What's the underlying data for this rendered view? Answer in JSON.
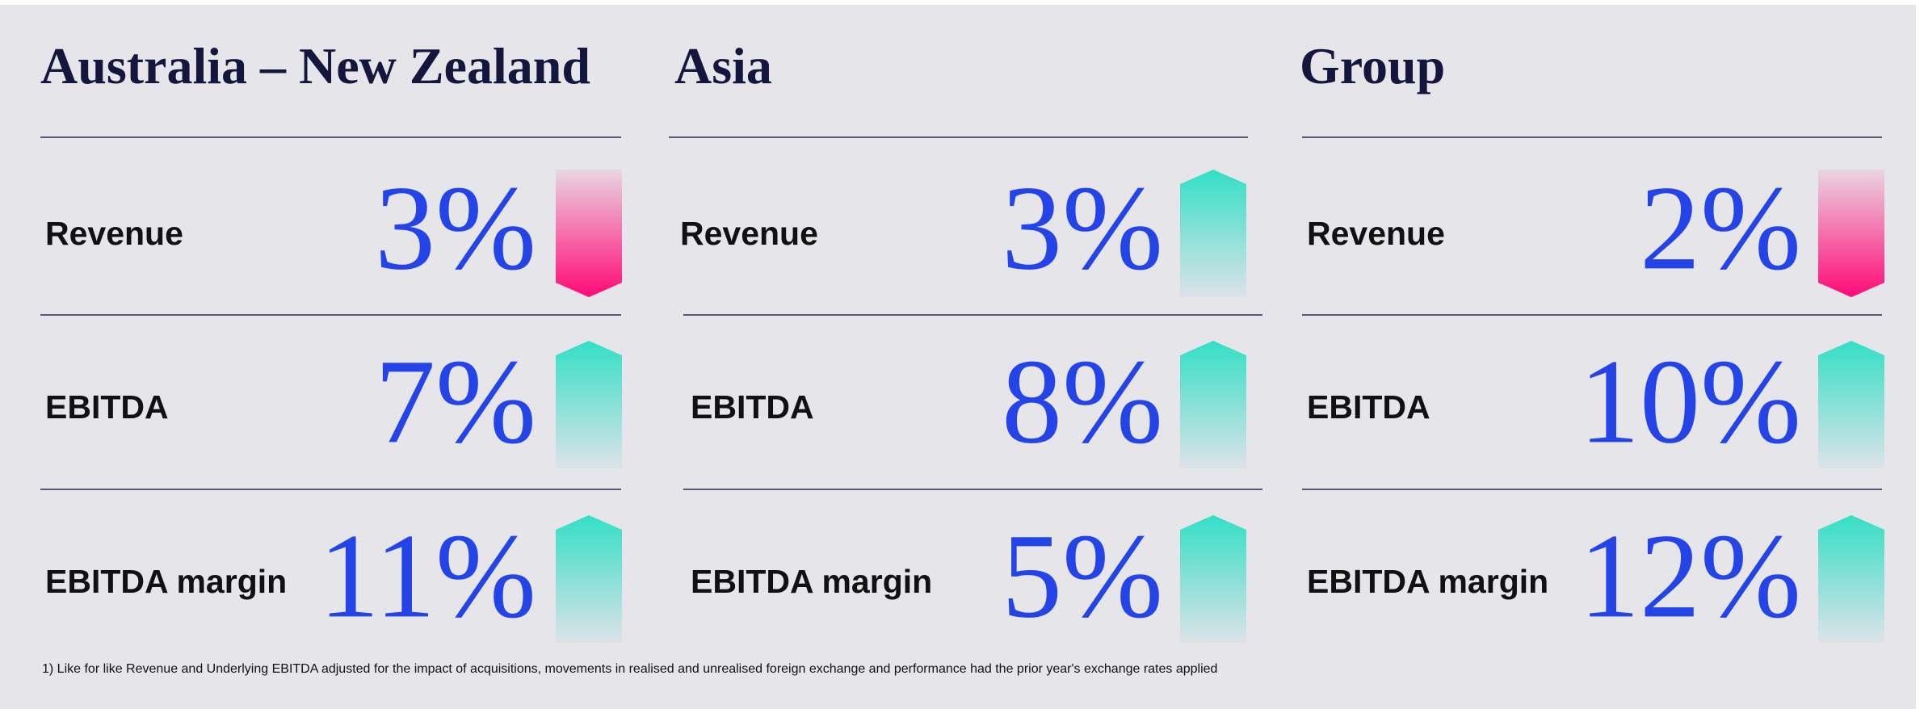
{
  "footnote": "1) Like for like Revenue and Underlying EBITDA adjusted for the impact of acquisitions, movements in realised and unrealised foreign exchange and performance had the prior year's exchange rates applied",
  "sections": [
    {
      "title": "Australia – New Zealand",
      "rows": [
        {
          "label": "Revenue",
          "value": "3%",
          "trend": "down"
        },
        {
          "label": "EBITDA",
          "value": "7%",
          "trend": "up"
        },
        {
          "label": "EBITDA margin",
          "value": "11%",
          "trend": "up"
        }
      ]
    },
    {
      "title": "Asia",
      "rows": [
        {
          "label": "Revenue",
          "value": "3%",
          "trend": "up"
        },
        {
          "label": "EBITDA",
          "value": "8%",
          "trend": "up"
        },
        {
          "label": "EBITDA margin",
          "value": "5%",
          "trend": "up"
        }
      ]
    },
    {
      "title": "Group",
      "rows": [
        {
          "label": "Revenue",
          "value": "2%",
          "trend": "down"
        },
        {
          "label": "EBITDA",
          "value": "10%",
          "trend": "up"
        },
        {
          "label": "EBITDA margin",
          "value": "12%",
          "trend": "up"
        }
      ]
    }
  ]
}
